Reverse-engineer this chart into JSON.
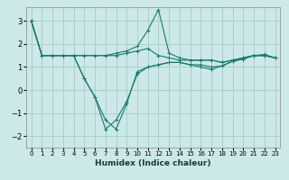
{
  "xlabel": "Humidex (Indice chaleur)",
  "bg_color": "#cce8e8",
  "grid_color": "#aacfcf",
  "line_color": "#1a7a6e",
  "xlim": [
    -0.5,
    23.5
  ],
  "ylim": [
    -2.5,
    3.6
  ],
  "yticks": [
    -2,
    -1,
    0,
    1,
    2,
    3
  ],
  "xticks": [
    0,
    1,
    2,
    3,
    4,
    5,
    6,
    7,
    8,
    9,
    10,
    11,
    12,
    13,
    14,
    15,
    16,
    17,
    18,
    19,
    20,
    21,
    22,
    23
  ],
  "series": [
    [
      3.0,
      1.5,
      1.5,
      1.5,
      1.5,
      1.5,
      1.5,
      1.5,
      1.5,
      1.6,
      1.7,
      1.8,
      1.5,
      1.4,
      1.3,
      1.3,
      1.3,
      1.3,
      1.2,
      1.3,
      1.4,
      1.5,
      1.5,
      1.4
    ],
    [
      3.0,
      1.5,
      1.5,
      1.5,
      1.5,
      1.5,
      1.5,
      1.5,
      1.6,
      1.7,
      1.9,
      2.6,
      3.5,
      1.6,
      1.4,
      1.3,
      1.3,
      1.3,
      1.2,
      1.3,
      1.4,
      1.5,
      1.5,
      1.4
    ],
    [
      3.0,
      1.5,
      1.5,
      1.5,
      1.5,
      0.5,
      -0.3,
      -1.3,
      -1.7,
      -0.6,
      0.8,
      1.0,
      1.1,
      1.2,
      1.2,
      1.1,
      1.1,
      1.0,
      1.05,
      1.25,
      1.35,
      1.5,
      1.5,
      1.4
    ],
    [
      3.0,
      1.5,
      1.5,
      1.5,
      1.5,
      0.5,
      -0.3,
      -1.7,
      -1.3,
      -0.5,
      0.7,
      1.0,
      1.1,
      1.2,
      1.2,
      1.1,
      1.0,
      0.9,
      1.05,
      1.25,
      1.35,
      1.5,
      1.55,
      1.4
    ]
  ]
}
